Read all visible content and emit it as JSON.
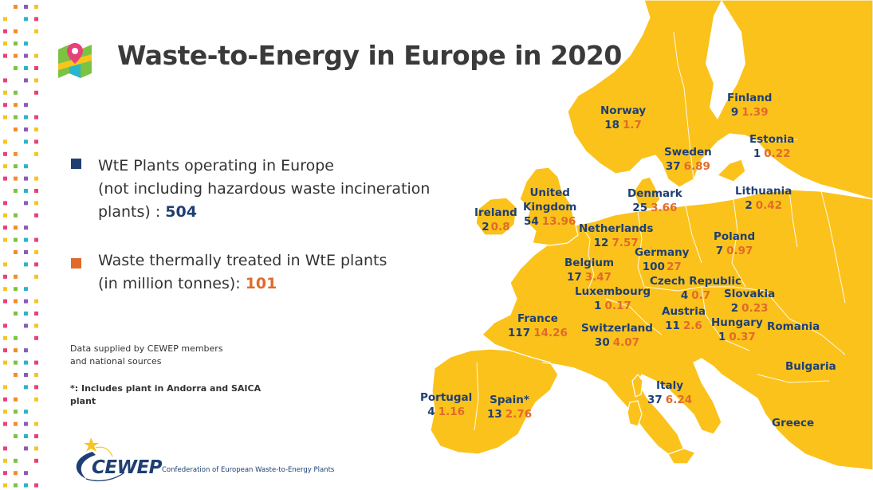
{
  "title": "Waste-to-Energy in Europe in 2020",
  "colors": {
    "blue": "#1f3f73",
    "orange": "#e06a2a",
    "land": "#fbc21c",
    "sea": "#ffffff"
  },
  "legend": {
    "plants_line1": "WtE Plants operating in Europe",
    "plants_line2": "(not including hazardous waste incineration",
    "plants_line3": "plants) : ",
    "plants_value": "504",
    "waste_line1": "Waste thermally treated in WtE plants",
    "waste_line2": "(in million tonnes): ",
    "waste_value": "101"
  },
  "notes": {
    "source_line1": "Data supplied by CEWEP members",
    "source_line2": "and national sources",
    "footnote_line1": "*: Includes plant in Andorra and SAICA",
    "footnote_line2": "plant"
  },
  "countries": [
    {
      "name": "Norway",
      "plants": "18",
      "tonnes": "1.7"
    },
    {
      "name": "Finland",
      "plants": "9",
      "tonnes": "1.39"
    },
    {
      "name": "Sweden",
      "plants": "37",
      "tonnes": "6.89"
    },
    {
      "name": "Estonia",
      "plants": "1",
      "tonnes": "0.22"
    },
    {
      "name": "Lithuania",
      "plants": "2",
      "tonnes": "0.42"
    },
    {
      "name": "Denmark",
      "plants": "25",
      "tonnes": "3.66"
    },
    {
      "name": "Ireland",
      "plants": "2",
      "tonnes": "0.8"
    },
    {
      "name_line1": "United",
      "name_line2": "Kingdom",
      "plants": "54",
      "tonnes": "13.96"
    },
    {
      "name": "Netherlands",
      "plants": "12",
      "tonnes": "7.57"
    },
    {
      "name": "Poland",
      "plants": "7",
      "tonnes": "0.97"
    },
    {
      "name": "Germany",
      "plants": "100",
      "tonnes": "27"
    },
    {
      "name": "Belgium",
      "plants": "17",
      "tonnes": "3.47"
    },
    {
      "name": "Czech Republic",
      "plants": "4",
      "tonnes": "0.7"
    },
    {
      "name": "Slovakia",
      "plants": "2",
      "tonnes": "0.23"
    },
    {
      "name": "Luxembourg",
      "plants": "1",
      "tonnes": "0.17"
    },
    {
      "name": "Austria",
      "plants": "11",
      "tonnes": "2.6"
    },
    {
      "name": "Hungary",
      "plants": "1",
      "tonnes": "0.37"
    },
    {
      "name": "France",
      "plants": "117",
      "tonnes": "14.26"
    },
    {
      "name": "Switzerland",
      "plants": "30",
      "tonnes": "4.07"
    },
    {
      "name": "Italy",
      "plants": "37",
      "tonnes": "6.24"
    },
    {
      "name": "Portugal",
      "plants": "4",
      "tonnes": "1.16"
    },
    {
      "name": "Spain*",
      "plants": "13",
      "tonnes": "2.76"
    }
  ],
  "labels_only": {
    "romania": "Romania",
    "bulgaria": "Bulgaria",
    "greece": "Greece"
  },
  "logo": {
    "name": "CEWEP",
    "subtitle": "Confederation of European Waste-to-Energy Plants"
  },
  "icons": {
    "header": "map-pin-icon",
    "logo": "cewep-logo-icon"
  }
}
